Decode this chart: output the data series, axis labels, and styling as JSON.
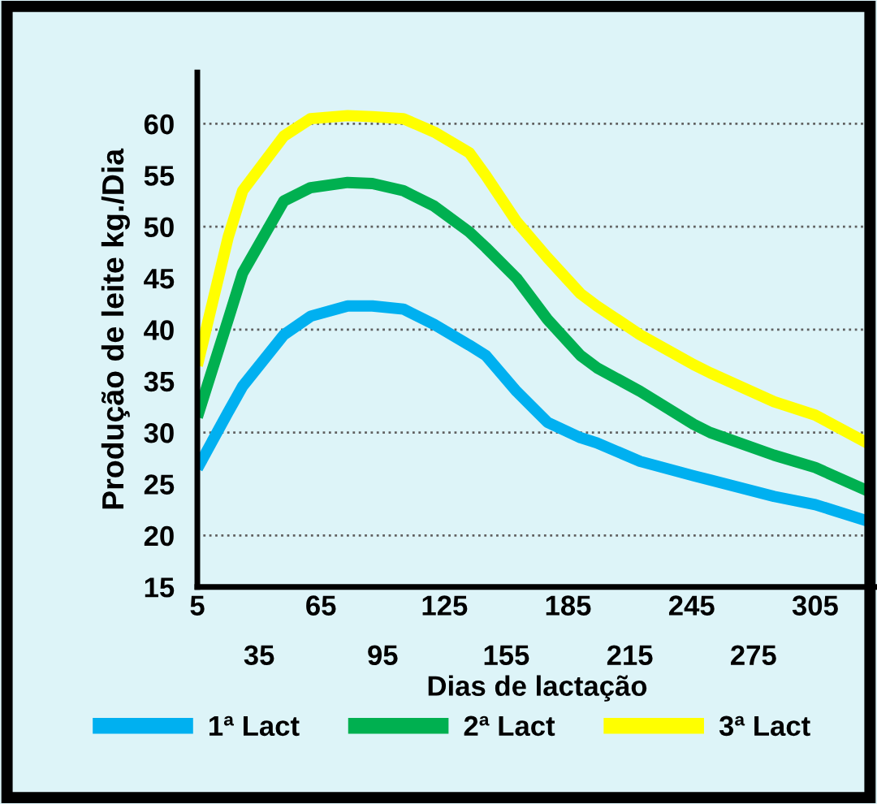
{
  "chart_data": {
    "type": "line",
    "xlabel": "Dias de lactação",
    "ylabel": "Produção de leite kg./Dia",
    "x": [
      5,
      20,
      27,
      47,
      60,
      78,
      90,
      105,
      120,
      137,
      145,
      160,
      175,
      191,
      199,
      220,
      246,
      254,
      285,
      305,
      332
    ],
    "series": [
      {
        "name": "1ª Lact",
        "color": "#00b0f0",
        "values": [
          26.5,
          32,
          34.5,
          39.5,
          41.3,
          42.3,
          42.3,
          42,
          40.5,
          38.5,
          37.5,
          34,
          31,
          29.5,
          29,
          27.2,
          25.8,
          25.4,
          23.8,
          23,
          21.3
        ]
      },
      {
        "name": "2ª Lact",
        "color": "#00b050",
        "values": [
          31.5,
          41,
          45.5,
          52.5,
          53.8,
          54.3,
          54.2,
          53.5,
          52,
          49.5,
          48,
          45,
          41,
          37.5,
          36.3,
          34,
          30.8,
          30,
          27.8,
          26.6,
          24.2
        ]
      },
      {
        "name": "3ª Lact",
        "color": "#ffff00",
        "values": [
          36.5,
          49,
          53.5,
          58.8,
          60.5,
          60.8,
          60.7,
          60.5,
          59.2,
          57.2,
          55,
          50.5,
          47,
          43.5,
          42.3,
          39.5,
          36.6,
          35.8,
          33,
          31.7,
          28.8
        ]
      }
    ],
    "xlim": [
      5,
      335
    ],
    "xticks": [
      5,
      65,
      125,
      185,
      245,
      305
    ],
    "x2lim": [
      5,
      335
    ],
    "x2ticks": [
      35,
      95,
      155,
      215,
      275
    ],
    "ylim": [
      15,
      65
    ],
    "yticks": [
      15,
      20,
      25,
      30,
      35,
      40,
      45,
      50,
      55,
      60
    ],
    "ref_lines": [
      {
        "axis": "y",
        "value": 20,
        "line_style": "dotted",
        "color": "#606060"
      },
      {
        "axis": "y",
        "value": 30,
        "line_style": "dotted",
        "color": "#606060"
      },
      {
        "axis": "y",
        "value": 40,
        "line_style": "dotted",
        "color": "#606060"
      },
      {
        "axis": "y",
        "value": 50,
        "line_style": "dotted",
        "color": "#606060"
      },
      {
        "axis": "y",
        "value": 60,
        "line_style": "dotted",
        "color": "#606060"
      }
    ],
    "grid": false,
    "legend": "bottom",
    "marker": "none",
    "line_style": "solid"
  }
}
